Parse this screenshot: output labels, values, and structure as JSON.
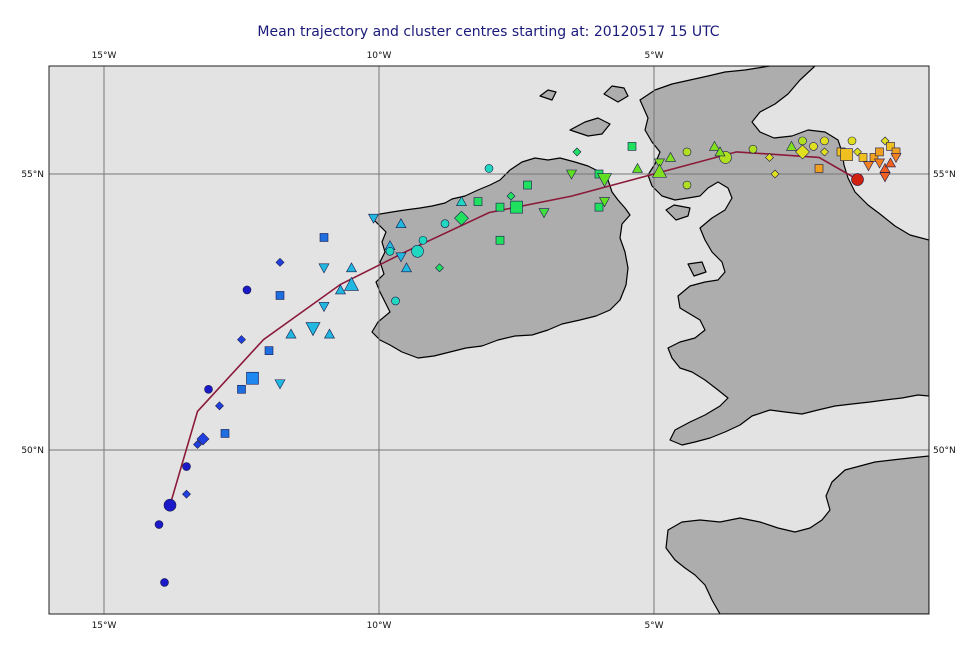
{
  "title": "Mean trajectory and cluster centres starting at: 20120517 15 UTC",
  "lon_ticks": [
    "15°W",
    "10°W",
    "5°W"
  ],
  "lat_ticks": [
    "55°N",
    "50°N"
  ],
  "colors": {
    "sea": "#e3e3e3",
    "land": "#adadad",
    "grid": "#777777",
    "trajectory": "#8b1a3a",
    "frame": "#222222"
  },
  "map_extent": {
    "lon": [
      -16,
      0
    ],
    "lat": [
      47,
      57
    ]
  },
  "mean_trajectory": [
    [
      -1.3,
      54.9
    ],
    [
      -2.0,
      55.3
    ],
    [
      -3.5,
      55.4
    ],
    [
      -5.0,
      55.0
    ],
    [
      -6.5,
      54.6
    ],
    [
      -8.0,
      54.3
    ],
    [
      -9.5,
      53.6
    ],
    [
      -10.7,
      53.0
    ],
    [
      -12.1,
      52.0
    ],
    [
      -13.3,
      50.7
    ],
    [
      -13.8,
      49.0
    ]
  ],
  "markers": [
    {
      "lon": -13.8,
      "lat": 49.0,
      "shape": "circle",
      "color": "#1a1ac8",
      "size": 6
    },
    {
      "lon": -14.0,
      "lat": 48.65,
      "shape": "circle",
      "color": "#1a1ac8",
      "size": 4
    },
    {
      "lon": -13.9,
      "lat": 47.6,
      "shape": "circle",
      "color": "#1a1ac8",
      "size": 4
    },
    {
      "lon": -13.5,
      "lat": 49.2,
      "shape": "diamond",
      "color": "#2040e0",
      "size": 3
    },
    {
      "lon": -13.5,
      "lat": 49.7,
      "shape": "circle",
      "color": "#1a1ac8",
      "size": 4
    },
    {
      "lon": -13.3,
      "lat": 50.1,
      "shape": "diamond",
      "color": "#2040e0",
      "size": 3
    },
    {
      "lon": -13.2,
      "lat": 50.2,
      "shape": "diamond",
      "color": "#2040e0",
      "size": 5
    },
    {
      "lon": -12.8,
      "lat": 50.3,
      "shape": "square",
      "color": "#1e6ee0",
      "size": 4
    },
    {
      "lon": -12.9,
      "lat": 50.8,
      "shape": "diamond",
      "color": "#2040e0",
      "size": 3
    },
    {
      "lon": -13.1,
      "lat": 51.1,
      "shape": "circle",
      "color": "#1a1ac8",
      "size": 4
    },
    {
      "lon": -12.5,
      "lat": 51.1,
      "shape": "square",
      "color": "#1e6ee0",
      "size": 4
    },
    {
      "lon": -12.3,
      "lat": 51.3,
      "shape": "square",
      "color": "#1e88f0",
      "size": 6
    },
    {
      "lon": -12.0,
      "lat": 51.8,
      "shape": "square",
      "color": "#1e6ee0",
      "size": 4
    },
    {
      "lon": -12.5,
      "lat": 52.0,
      "shape": "diamond",
      "color": "#2040e0",
      "size": 3
    },
    {
      "lon": -11.6,
      "lat": 52.1,
      "shape": "tri-up",
      "color": "#20b8e0",
      "size": 4
    },
    {
      "lon": -11.2,
      "lat": 52.2,
      "shape": "tri-down",
      "color": "#20b8e0",
      "size": 6
    },
    {
      "lon": -11.8,
      "lat": 51.2,
      "shape": "tri-down",
      "color": "#20b8e0",
      "size": 4
    },
    {
      "lon": -12.4,
      "lat": 52.9,
      "shape": "circle",
      "color": "#1a1ac8",
      "size": 4
    },
    {
      "lon": -11.8,
      "lat": 52.8,
      "shape": "square",
      "color": "#1e6ee0",
      "size": 4
    },
    {
      "lon": -11.0,
      "lat": 52.6,
      "shape": "tri-down",
      "color": "#20b8e0",
      "size": 4
    },
    {
      "lon": -10.9,
      "lat": 52.1,
      "shape": "tri-up",
      "color": "#20b8e0",
      "size": 4
    },
    {
      "lon": -10.7,
      "lat": 52.9,
      "shape": "tri-up",
      "color": "#20b8e0",
      "size": 4
    },
    {
      "lon": -10.5,
      "lat": 53.0,
      "shape": "tri-up",
      "color": "#20b8e0",
      "size": 6
    },
    {
      "lon": -11.8,
      "lat": 53.4,
      "shape": "diamond",
      "color": "#2040e0",
      "size": 3
    },
    {
      "lon": -11.0,
      "lat": 53.3,
      "shape": "tri-down",
      "color": "#20b8e0",
      "size": 4
    },
    {
      "lon": -10.5,
      "lat": 53.3,
      "shape": "tri-up",
      "color": "#20b8e0",
      "size": 4
    },
    {
      "lon": -11.0,
      "lat": 53.85,
      "shape": "square",
      "color": "#1e6ee0",
      "size": 4
    },
    {
      "lon": -10.1,
      "lat": 54.2,
      "shape": "tri-down",
      "color": "#20b8e0",
      "size": 4
    },
    {
      "lon": -9.6,
      "lat": 54.1,
      "shape": "tri-up",
      "color": "#20b8e0",
      "size": 4
    },
    {
      "lon": -9.8,
      "lat": 53.7,
      "shape": "tri-up",
      "color": "#20b8e0",
      "size": 4
    },
    {
      "lon": -9.6,
      "lat": 53.5,
      "shape": "tri-down",
      "color": "#20b8e0",
      "size": 4
    },
    {
      "lon": -9.5,
      "lat": 53.3,
      "shape": "tri-up",
      "color": "#20b8e0",
      "size": 4
    },
    {
      "lon": -9.8,
      "lat": 53.6,
      "shape": "circle",
      "color": "#20d8c0",
      "size": 4
    },
    {
      "lon": -9.3,
      "lat": 53.6,
      "shape": "circle",
      "color": "#20d8c0",
      "size": 6
    },
    {
      "lon": -9.2,
      "lat": 53.8,
      "shape": "circle",
      "color": "#20d8c0",
      "size": 4
    },
    {
      "lon": -9.7,
      "lat": 52.7,
      "shape": "circle",
      "color": "#20d8c0",
      "size": 4
    },
    {
      "lon": -8.8,
      "lat": 54.1,
      "shape": "circle",
      "color": "#20d8c0",
      "size": 4
    },
    {
      "lon": -8.5,
      "lat": 54.5,
      "shape": "tri-up",
      "color": "#20d8c0",
      "size": 4
    },
    {
      "lon": -8.5,
      "lat": 54.2,
      "shape": "diamond",
      "color": "#20e060",
      "size": 6
    },
    {
      "lon": -8.9,
      "lat": 53.3,
      "shape": "diamond",
      "color": "#20e060",
      "size": 3
    },
    {
      "lon": -8.2,
      "lat": 54.5,
      "shape": "square",
      "color": "#20e060",
      "size": 4
    },
    {
      "lon": -7.8,
      "lat": 54.4,
      "shape": "square",
      "color": "#20e060",
      "size": 4
    },
    {
      "lon": -7.5,
      "lat": 54.4,
      "shape": "square",
      "color": "#20e060",
      "size": 6
    },
    {
      "lon": -7.3,
      "lat": 54.8,
      "shape": "square",
      "color": "#20e060",
      "size": 4
    },
    {
      "lon": -7.8,
      "lat": 53.8,
      "shape": "square",
      "color": "#20e060",
      "size": 4
    },
    {
      "lon": -7.6,
      "lat": 54.6,
      "shape": "diamond",
      "color": "#20e060",
      "size": 3
    },
    {
      "lon": -7.0,
      "lat": 54.3,
      "shape": "tri-down",
      "color": "#40e040",
      "size": 4
    },
    {
      "lon": -8.0,
      "lat": 55.1,
      "shape": "circle",
      "color": "#20d8c0",
      "size": 4
    },
    {
      "lon": -6.5,
      "lat": 55.0,
      "shape": "tri-down",
      "color": "#60e020",
      "size": 4
    },
    {
      "lon": -6.0,
      "lat": 54.4,
      "shape": "square",
      "color": "#20e060",
      "size": 4
    },
    {
      "lon": -6.0,
      "lat": 55.0,
      "shape": "square",
      "color": "#20e060",
      "size": 4
    },
    {
      "lon": -5.9,
      "lat": 54.9,
      "shape": "tri-down",
      "color": "#60e020",
      "size": 6
    },
    {
      "lon": -5.9,
      "lat": 54.5,
      "shape": "tri-down",
      "color": "#60e020",
      "size": 4
    },
    {
      "lon": -6.4,
      "lat": 55.4,
      "shape": "diamond",
      "color": "#20e060",
      "size": 3
    },
    {
      "lon": -5.4,
      "lat": 55.5,
      "shape": "square",
      "color": "#20e060",
      "size": 4
    },
    {
      "lon": -5.3,
      "lat": 55.1,
      "shape": "tri-up",
      "color": "#60e020",
      "size": 4
    },
    {
      "lon": -4.9,
      "lat": 55.2,
      "shape": "tri-down",
      "color": "#80e020",
      "size": 4
    },
    {
      "lon": -4.7,
      "lat": 55.3,
      "shape": "tri-up",
      "color": "#80e020",
      "size": 4
    },
    {
      "lon": -4.9,
      "lat": 55.05,
      "shape": "tri-up",
      "color": "#80e020",
      "size": 6
    },
    {
      "lon": -4.4,
      "lat": 54.8,
      "shape": "circle",
      "color": "#b0e020",
      "size": 4
    },
    {
      "lon": -4.4,
      "lat": 55.4,
      "shape": "circle",
      "color": "#b0e020",
      "size": 4
    },
    {
      "lon": -3.9,
      "lat": 55.5,
      "shape": "tri-up",
      "color": "#80e020",
      "size": 4
    },
    {
      "lon": -3.7,
      "lat": 55.3,
      "shape": "circle",
      "color": "#b0e020",
      "size": 6
    },
    {
      "lon": -3.8,
      "lat": 55.4,
      "shape": "tri-up",
      "color": "#80e020",
      "size": 4
    },
    {
      "lon": -3.2,
      "lat": 55.45,
      "shape": "circle",
      "color": "#b0e020",
      "size": 4
    },
    {
      "lon": -2.8,
      "lat": 55.0,
      "shape": "diamond",
      "color": "#e0e020",
      "size": 3
    },
    {
      "lon": -2.5,
      "lat": 55.5,
      "shape": "tri-up",
      "color": "#80e020",
      "size": 4
    },
    {
      "lon": -2.3,
      "lat": 55.6,
      "shape": "circle",
      "color": "#b0e020",
      "size": 4
    },
    {
      "lon": -2.1,
      "lat": 55.5,
      "shape": "circle",
      "color": "#e0e020",
      "size": 4
    },
    {
      "lon": -1.9,
      "lat": 55.4,
      "shape": "diamond",
      "color": "#e0e020",
      "size": 3
    },
    {
      "lon": -2.3,
      "lat": 55.4,
      "shape": "diamond",
      "color": "#e0e020",
      "size": 6
    },
    {
      "lon": -1.9,
      "lat": 55.6,
      "shape": "circle",
      "color": "#e0e020",
      "size": 4
    },
    {
      "lon": -1.6,
      "lat": 55.4,
      "shape": "square",
      "color": "#f0c020",
      "size": 4
    },
    {
      "lon": -1.5,
      "lat": 55.35,
      "shape": "square",
      "color": "#f0c020",
      "size": 6
    },
    {
      "lon": -1.4,
      "lat": 55.6,
      "shape": "circle",
      "color": "#e0e020",
      "size": 4
    },
    {
      "lon": -1.3,
      "lat": 55.4,
      "shape": "diamond",
      "color": "#e0e020",
      "size": 3
    },
    {
      "lon": -1.2,
      "lat": 55.3,
      "shape": "square",
      "color": "#f0c020",
      "size": 4
    },
    {
      "lon": -1.0,
      "lat": 55.3,
      "shape": "square",
      "color": "#f0a020",
      "size": 4
    },
    {
      "lon": -0.9,
      "lat": 55.4,
      "shape": "square",
      "color": "#f0a020",
      "size": 4
    },
    {
      "lon": -0.8,
      "lat": 55.6,
      "shape": "diamond",
      "color": "#e0e020",
      "size": 3
    },
    {
      "lon": -0.7,
      "lat": 55.5,
      "shape": "square",
      "color": "#f0c020",
      "size": 4
    },
    {
      "lon": -0.6,
      "lat": 55.4,
      "shape": "square",
      "color": "#f0a020",
      "size": 4
    },
    {
      "lon": -1.1,
      "lat": 55.15,
      "shape": "tri-down",
      "color": "#f08020",
      "size": 4
    },
    {
      "lon": -0.9,
      "lat": 55.2,
      "shape": "tri-down",
      "color": "#f08020",
      "size": 4
    },
    {
      "lon": -0.8,
      "lat": 55.1,
      "shape": "tri-up",
      "color": "#f06020",
      "size": 4
    },
    {
      "lon": -0.7,
      "lat": 55.2,
      "shape": "tri-up",
      "color": "#f06020",
      "size": 4
    },
    {
      "lon": -0.8,
      "lat": 54.95,
      "shape": "tri-down",
      "color": "#f06020",
      "size": 4
    },
    {
      "lon": -0.6,
      "lat": 55.3,
      "shape": "tri-down",
      "color": "#f08020",
      "size": 4
    },
    {
      "lon": -2.0,
      "lat": 55.1,
      "shape": "square",
      "color": "#f0a020",
      "size": 4
    },
    {
      "lon": -2.9,
      "lat": 55.3,
      "shape": "diamond",
      "color": "#e0e020",
      "size": 3
    },
    {
      "lon": -1.3,
      "lat": 54.9,
      "shape": "circle",
      "color": "#d02010",
      "size": 6
    }
  ]
}
